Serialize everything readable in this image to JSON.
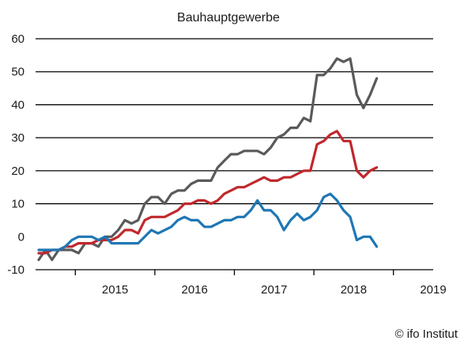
{
  "chart_data": {
    "type": "line",
    "title": "Bauhauptgewerbe",
    "xlabel": "",
    "ylabel": "",
    "ylim": [
      -10,
      60
    ],
    "yticks": [
      -10,
      0,
      10,
      20,
      30,
      40,
      50,
      60
    ],
    "x_start": "2014-07",
    "x_end": "2019-06",
    "xtick_labels": [
      "2015",
      "2016",
      "2017",
      "2018",
      "2019"
    ],
    "grid": "horizontal",
    "legend": "none",
    "series": [
      {
        "color": "#5a5a5a",
        "values": [
          -7,
          -4,
          -7,
          -4,
          -4,
          -4,
          -5,
          -2,
          -2,
          -3,
          0,
          0,
          2,
          5,
          4,
          5,
          10,
          12,
          12,
          10,
          13,
          14,
          14,
          16,
          17,
          17,
          17,
          21,
          23,
          25,
          25,
          26,
          26,
          26,
          25,
          27,
          30,
          31,
          33,
          33,
          36,
          35,
          49,
          49,
          51,
          54,
          53,
          54,
          43,
          39,
          43,
          48
        ]
      },
      {
        "color": "#c0282d",
        "values": [
          -5,
          -5,
          -4,
          -4,
          -3,
          -3,
          -2,
          -2,
          -2,
          -1,
          -1,
          -1,
          0,
          2,
          2,
          1,
          5,
          6,
          6,
          6,
          7,
          8,
          10,
          10,
          11,
          11,
          10,
          11,
          13,
          14,
          15,
          15,
          16,
          17,
          18,
          17,
          17,
          18,
          18,
          19,
          20,
          20,
          28,
          29,
          31,
          32,
          29,
          29,
          20,
          18,
          20,
          21
        ]
      },
      {
        "color": "#1f77b4",
        "values": [
          -4,
          -4,
          -4,
          -4,
          -3,
          -1,
          0,
          0,
          0,
          -1,
          0,
          -2,
          -2,
          -2,
          -2,
          -2,
          0,
          2,
          1,
          2,
          3,
          5,
          6,
          5,
          5,
          3,
          3,
          4,
          5,
          5,
          6,
          6,
          8,
          11,
          8,
          8,
          6,
          2,
          5,
          7,
          5,
          6,
          8,
          12,
          13,
          11,
          8,
          6,
          -1,
          0,
          0,
          -3
        ]
      }
    ]
  },
  "footer": {
    "credit": "© ifo Institut"
  }
}
